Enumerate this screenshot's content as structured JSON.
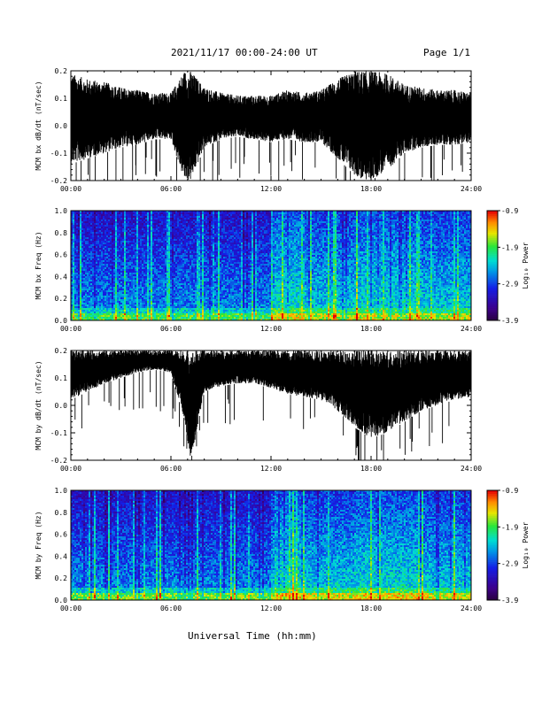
{
  "header": {
    "title": "2021/11/17  00:00-24:00 UT",
    "page": "Page 1/1"
  },
  "x_axis_title": "Universal Time (hh:mm)",
  "colorbar_label": "Log₁₀ Power",
  "chart_data": [
    {
      "type": "line",
      "panel": "bx-waveform",
      "ylabel": "MCM bx dB/dt (nT/sec)",
      "xlim": [
        "00:00",
        "24:00"
      ],
      "ylim": [
        -0.2,
        0.2
      ],
      "x_ticks": [
        "00:00",
        "06:00",
        "12:00",
        "18:00",
        "24:00"
      ],
      "y_ticks": [
        "-0.2",
        "-0.1",
        "0.0",
        "0.1",
        "0.2"
      ],
      "y_tick_values": [
        -0.2,
        -0.1,
        0.0,
        0.1,
        0.2
      ],
      "envelope": {
        "hours": [
          0,
          1,
          2,
          3,
          4,
          5,
          6,
          6.8,
          7.2,
          8,
          9,
          10,
          11,
          12,
          13,
          14,
          15,
          16,
          17,
          17.5,
          18,
          19,
          20,
          21,
          22,
          23,
          24
        ],
        "upper": [
          0.19,
          0.17,
          0.16,
          0.14,
          0.13,
          0.12,
          0.12,
          0.2,
          0.2,
          0.14,
          0.12,
          0.11,
          0.11,
          0.11,
          0.13,
          0.12,
          0.13,
          0.17,
          0.2,
          0.2,
          0.2,
          0.19,
          0.15,
          0.14,
          0.13,
          0.13,
          0.12
        ],
        "lower": [
          -0.14,
          -0.12,
          -0.1,
          -0.08,
          -0.07,
          -0.05,
          -0.05,
          -0.2,
          -0.2,
          -0.08,
          -0.05,
          -0.04,
          -0.05,
          -0.06,
          -0.05,
          -0.06,
          -0.06,
          -0.12,
          -0.18,
          -0.2,
          -0.2,
          -0.16,
          -0.1,
          -0.08,
          -0.07,
          -0.07,
          -0.06
        ]
      }
    },
    {
      "type": "heatmap",
      "panel": "bx-spectrogram",
      "ylabel": "MCM bx Freq (Hz)",
      "xlim": [
        "00:00",
        "24:00"
      ],
      "ylim": [
        0.0,
        1.0
      ],
      "x_ticks": [
        "00:00",
        "06:00",
        "12:00",
        "18:00",
        "24:00"
      ],
      "y_ticks": [
        "0.0",
        "0.2",
        "0.4",
        "0.6",
        "0.8",
        "1.0"
      ],
      "y_tick_values": [
        0,
        0.2,
        0.4,
        0.6,
        0.8,
        1.0
      ],
      "colorbar": {
        "label": "Log₁₀ Power",
        "min": -3.9,
        "max": -0.9,
        "ticks": [
          "-0.9",
          "-1.9",
          "-2.9",
          "-3.9"
        ],
        "tick_values": [
          -0.9,
          -1.9,
          -2.9,
          -3.9
        ]
      }
    },
    {
      "type": "line",
      "panel": "by-waveform",
      "ylabel": "MCM by dB/dt (nT/sec)",
      "xlim": [
        "00:00",
        "24:00"
      ],
      "ylim": [
        -0.2,
        0.2
      ],
      "x_ticks": [
        "00:00",
        "06:00",
        "12:00",
        "18:00",
        "24:00"
      ],
      "y_ticks": [
        "-0.2",
        "-0.1",
        "0.0",
        "0.1",
        "0.2"
      ],
      "y_tick_values": [
        -0.2,
        -0.1,
        0.0,
        0.1,
        0.2
      ],
      "envelope": {
        "hours": [
          0,
          1,
          2,
          3,
          4,
          5,
          6,
          6.8,
          7.2,
          8,
          9,
          10,
          11,
          12,
          13,
          14,
          15,
          16,
          17,
          18,
          19,
          20,
          21,
          22,
          23,
          24
        ],
        "upper": [
          0.2,
          0.2,
          0.2,
          0.2,
          0.2,
          0.2,
          0.2,
          0.2,
          0.2,
          0.2,
          0.2,
          0.2,
          0.2,
          0.2,
          0.2,
          0.2,
          0.2,
          0.2,
          0.2,
          0.2,
          0.2,
          0.2,
          0.2,
          0.2,
          0.2,
          0.2
        ],
        "lower": [
          0.02,
          0.05,
          0.08,
          0.1,
          0.12,
          0.13,
          0.12,
          -0.05,
          -0.2,
          0.05,
          0.07,
          0.08,
          0.08,
          0.06,
          0.04,
          0.03,
          0.02,
          -0.02,
          -0.08,
          -0.12,
          -0.1,
          -0.06,
          -0.02,
          0.0,
          0.02,
          0.03
        ]
      }
    },
    {
      "type": "heatmap",
      "panel": "by-spectrogram",
      "ylabel": "MCM by Freq (Hz)",
      "xlim": [
        "00:00",
        "24:00"
      ],
      "ylim": [
        0.0,
        1.0
      ],
      "x_ticks": [
        "00:00",
        "06:00",
        "12:00",
        "18:00",
        "24:00"
      ],
      "y_ticks": [
        "0.0",
        "0.2",
        "0.4",
        "0.6",
        "0.8",
        "1.0"
      ],
      "y_tick_values": [
        0,
        0.2,
        0.4,
        0.6,
        0.8,
        1.0
      ],
      "colorbar": {
        "label": "Log₁₀ Power",
        "min": -3.9,
        "max": -0.9,
        "ticks": [
          "-0.9",
          "-1.9",
          "-2.9",
          "-3.9"
        ],
        "tick_values": [
          -0.9,
          -1.9,
          -2.9,
          -3.9
        ]
      }
    }
  ]
}
